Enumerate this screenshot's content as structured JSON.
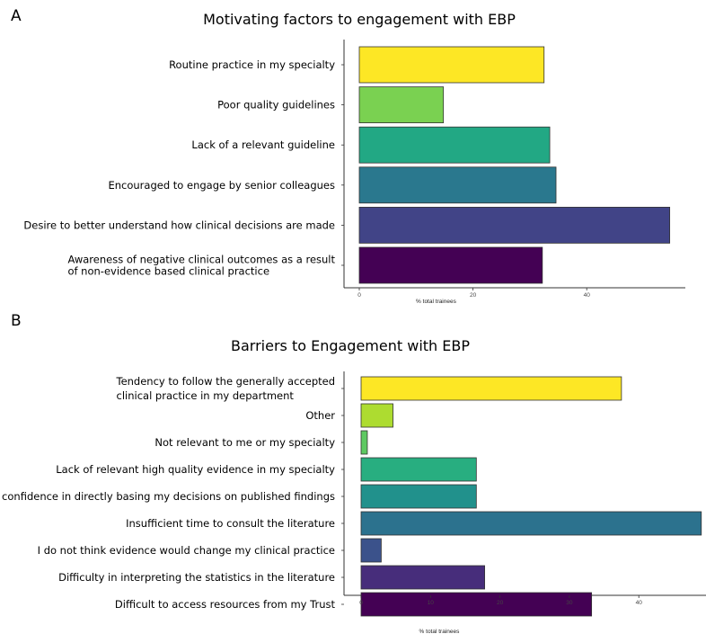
{
  "chart_data": [
    {
      "panel": "A",
      "type": "bar",
      "orientation": "horizontal",
      "title": "Motivating factors to engagement with EBP",
      "xlabel": "% total trainees",
      "xlim": [
        0,
        55
      ],
      "xticks": [
        "0",
        "20",
        "40"
      ],
      "categories": [
        [
          "Routine practice in my  specialty"
        ],
        [
          "Poor quality guidelines"
        ],
        [
          "Lack of a relevant guideline"
        ],
        [
          "Encouraged to engage by senior colleagues"
        ],
        [
          "Desire to better understand how clinical decisions are made"
        ],
        [
          "Awareness of negative clinical outcomes as a result",
          "of non-evidence based clinical practice"
        ]
      ],
      "values": [
        32.5,
        14.8,
        33.5,
        34.6,
        54.6,
        32.2
      ],
      "colors": [
        "#fde725",
        "#7ad151",
        "#22a884",
        "#2a788e",
        "#414487",
        "#440154"
      ]
    },
    {
      "panel": "B",
      "type": "bar",
      "orientation": "horizontal",
      "title": "Barriers to Engagement with EBP",
      "xlabel": "% total trainees",
      "xlim": [
        0,
        49
      ],
      "xticks": [
        "0",
        "10",
        "20",
        "30",
        "40"
      ],
      "categories": [
        [
          "Tendency to follow the generally accepted",
          "clinical practice in my department"
        ],
        [
          "Other"
        ],
        [
          "Not relevant to me or my specialty"
        ],
        [
          "Lack of relevant high quality evidence in my specialty"
        ],
        [
          "confidence in directly basing my decisions on published findings"
        ],
        [
          "Insufficient time to consult the literature"
        ],
        [
          "I do not think evidence would change my clinical practice"
        ],
        [
          "Difficulty in interpreting the statistics in the literature"
        ],
        [
          "Difficult to access resources from my Trust"
        ]
      ],
      "values": [
        37.5,
        4.6,
        0.9,
        16.6,
        16.6,
        49,
        2.9,
        17.8,
        33.2
      ],
      "colors": [
        "#fde725",
        "#addc30",
        "#5ec962",
        "#28ae80",
        "#21918c",
        "#2c728e",
        "#3b528b",
        "#472d7b",
        "#440154"
      ]
    }
  ]
}
